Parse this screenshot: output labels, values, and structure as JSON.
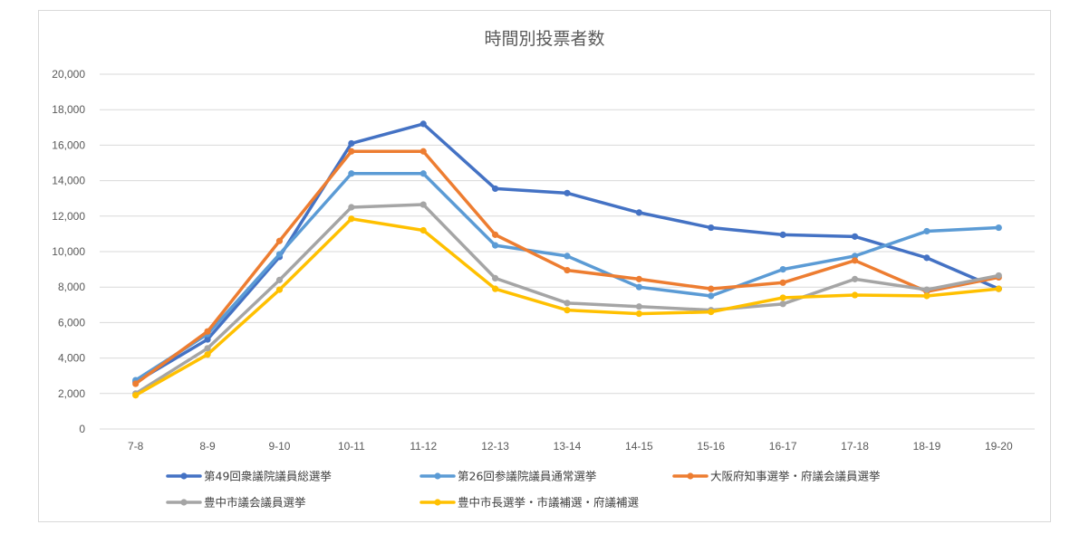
{
  "chart_data": {
    "type": "line",
    "title": "時間別投票者数",
    "xlabel": "",
    "ylabel": "",
    "ylim": [
      0,
      20000
    ],
    "yticks": [
      0,
      2000,
      4000,
      6000,
      8000,
      10000,
      12000,
      14000,
      16000,
      18000,
      20000
    ],
    "ytick_labels": [
      "0",
      "2,000",
      "4,000",
      "6,000",
      "8,000",
      "10,000",
      "12,000",
      "14,000",
      "16,000",
      "18,000",
      "20,000"
    ],
    "categories": [
      "7-8",
      "8-9",
      "9-10",
      "10-11",
      "11-12",
      "12-13",
      "13-14",
      "14-15",
      "15-16",
      "16-17",
      "17-18",
      "18-19",
      "19-20"
    ],
    "grid": true,
    "legend_position": "bottom",
    "series": [
      {
        "name": "第49回衆議院議員総選挙",
        "color": "#4472c4",
        "values": [
          2650,
          5050,
          9700,
          16100,
          17200,
          13550,
          13300,
          12200,
          11350,
          10950,
          10850,
          9650,
          7900
        ]
      },
      {
        "name": "第26回参議院議員通常選挙",
        "color": "#5b9bd5",
        "values": [
          2750,
          5350,
          9850,
          14400,
          14400,
          10350,
          9750,
          8000,
          7500,
          9000,
          9750,
          11150,
          11350
        ]
      },
      {
        "name": "大阪府知事選挙・府議会議員選挙",
        "color": "#ed7d31",
        "values": [
          2550,
          5500,
          10600,
          15650,
          15650,
          10950,
          8950,
          8450,
          7900,
          8250,
          9500,
          7750,
          8550
        ]
      },
      {
        "name": "豊中市議会議員選挙",
        "color": "#a5a5a5",
        "values": [
          2000,
          4550,
          8400,
          12500,
          12650,
          8500,
          7100,
          6900,
          6700,
          7050,
          8450,
          7850,
          8650
        ]
      },
      {
        "name": "豊中市長選挙・市議補選・府議補選",
        "color": "#ffc000",
        "values": [
          1900,
          4200,
          7850,
          11850,
          11200,
          7900,
          6700,
          6500,
          6600,
          7400,
          7550,
          7500,
          7900
        ]
      }
    ]
  }
}
